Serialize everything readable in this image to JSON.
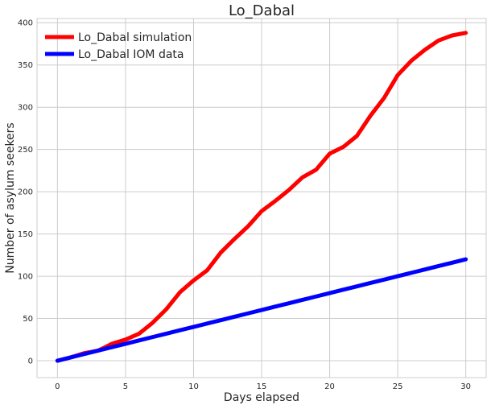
{
  "chart_data": {
    "type": "line",
    "title": "Lo_Dabal",
    "xlabel": "Days elapsed",
    "ylabel": "Number of asylum seekers",
    "xlim": [
      -1.5,
      31.5
    ],
    "ylim": [
      -20,
      405
    ],
    "xticks": [
      0,
      5,
      10,
      15,
      20,
      25,
      30
    ],
    "yticks": [
      0,
      50,
      100,
      150,
      200,
      250,
      300,
      350,
      400
    ],
    "grid": true,
    "legend_position": "top-left",
    "x": [
      0,
      1,
      2,
      3,
      4,
      5,
      6,
      7,
      8,
      9,
      10,
      11,
      12,
      13,
      14,
      15,
      16,
      17,
      18,
      19,
      20,
      21,
      22,
      23,
      24,
      25,
      26,
      27,
      28,
      29,
      30
    ],
    "series": [
      {
        "name": "Lo_Dabal simulation",
        "color": "#ff0000",
        "values": [
          0,
          4,
          9,
          12,
          20,
          25,
          32,
          45,
          61,
          81,
          95,
          107,
          128,
          144,
          159,
          177,
          189,
          202,
          217,
          226,
          245,
          253,
          266,
          290,
          311,
          338,
          355,
          368,
          379,
          385,
          388
        ]
      },
      {
        "name": "Lo_Dabal IOM data",
        "color": "#0000ff",
        "values": [
          0,
          4,
          8,
          12,
          16,
          20,
          24,
          28,
          32,
          36,
          40,
          44,
          48,
          52,
          56,
          60,
          64,
          68,
          72,
          76,
          80,
          84,
          88,
          92,
          96,
          100,
          104,
          108,
          112,
          116,
          120
        ]
      }
    ]
  }
}
